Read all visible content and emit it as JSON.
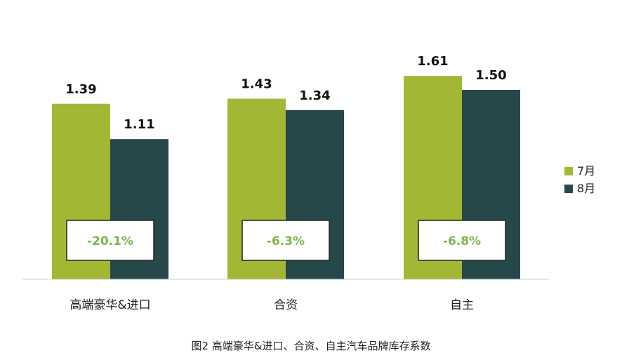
{
  "chart_data": {
    "type": "bar",
    "categories": [
      "高端豪华&进口",
      "合资",
      "自主"
    ],
    "series": [
      {
        "name": "7月",
        "values": [
          1.39,
          1.43,
          1.61
        ],
        "color": "#a2b835"
      },
      {
        "name": "8月",
        "values": [
          1.11,
          1.34,
          1.5
        ],
        "color": "#27484a"
      }
    ],
    "value_labels": [
      [
        "1.39",
        "1.43",
        "1.61"
      ],
      [
        "1.11",
        "1.34",
        "1.50"
      ]
    ],
    "change_labels": [
      "-20.1%",
      "-6.3%",
      "-6.8%"
    ],
    "change_color": "#7ab648",
    "ylim": [
      0,
      1.8
    ],
    "grid": false,
    "legend_position": "right",
    "caption": "图2 高端豪华&进口、合资、自主汽车品牌库存系数"
  }
}
